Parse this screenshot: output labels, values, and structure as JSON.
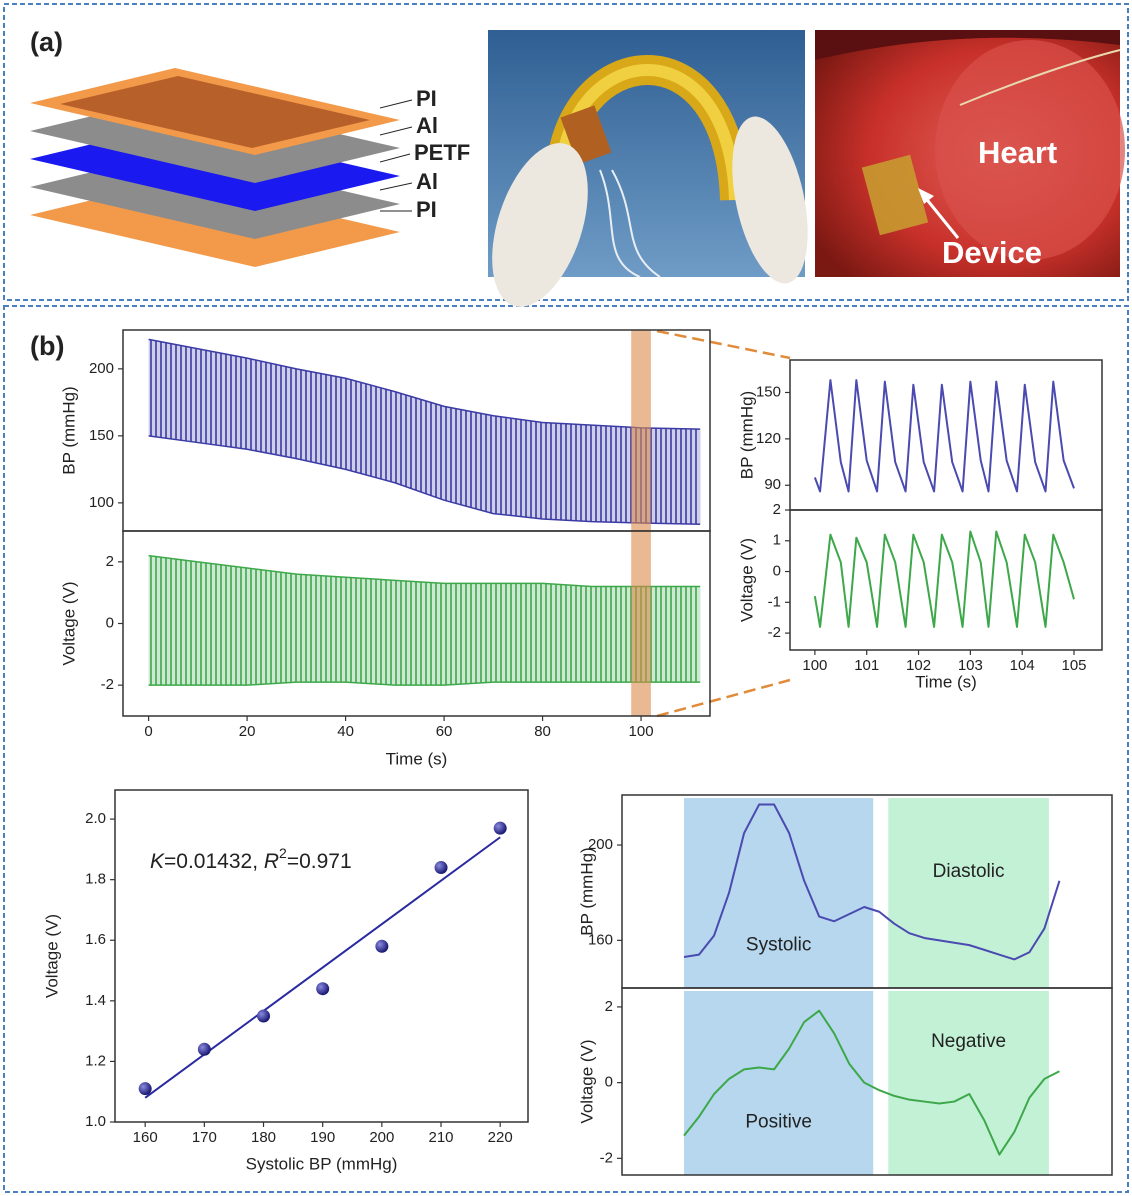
{
  "panel_a": {
    "label": "(a)",
    "layers": [
      "PI",
      "Al",
      "PETF",
      "Al",
      "PI"
    ],
    "photo_labels": [
      "Heart",
      "Device"
    ]
  },
  "panel_b": {
    "label": "(b)"
  },
  "chart_data": [
    {
      "type": "band",
      "x": [
        0,
        10,
        20,
        30,
        40,
        50,
        60,
        70,
        80,
        90,
        100,
        112
      ],
      "series": [
        {
          "color": "#3b3ba6",
          "values": [
            222,
            215,
            208,
            200,
            193,
            183,
            172,
            165,
            160,
            158,
            156,
            155
          ]
        },
        {
          "color": "#3b3ba6",
          "values": [
            150,
            145,
            140,
            133,
            125,
            115,
            102,
            92,
            88,
            86,
            85,
            84
          ]
        }
      ],
      "xlim": [
        -5.2,
        114
      ],
      "ylim": [
        79,
        229
      ],
      "yticks": [
        100,
        150,
        200
      ],
      "ylabel": "BP (mmHg)",
      "highlight": [
        98,
        102
      ]
    },
    {
      "type": "band",
      "x": [
        0,
        10,
        20,
        30,
        40,
        50,
        60,
        70,
        80,
        90,
        100,
        112
      ],
      "series": [
        {
          "color": "#3da84a",
          "values": [
            2.2,
            2.0,
            1.8,
            1.6,
            1.5,
            1.4,
            1.3,
            1.3,
            1.3,
            1.2,
            1.2,
            1.2
          ]
        },
        {
          "color": "#3da84a",
          "values": [
            -2.0,
            -2.0,
            -2.0,
            -1.9,
            -1.9,
            -2.0,
            -2.0,
            -1.9,
            -1.9,
            -1.9,
            -1.9,
            -1.9
          ]
        }
      ],
      "xlim": [
        -5.2,
        114
      ],
      "ylim": [
        -3,
        3
      ],
      "yticks": [
        -2,
        0,
        2
      ],
      "xticks": [
        0,
        20,
        40,
        60,
        80,
        100
      ],
      "xlabel": "Time (s)",
      "ylabel": "Voltage (V)",
      "highlight": [
        98,
        102
      ]
    },
    {
      "type": "line",
      "x": [
        100,
        100.1,
        100.3,
        100.5,
        100.65,
        100.8,
        101,
        101.2,
        101.35,
        101.55,
        101.75,
        101.9,
        102.1,
        102.3,
        102.45,
        102.65,
        102.85,
        103,
        103.2,
        103.35,
        103.5,
        103.7,
        103.9,
        104.05,
        104.25,
        104.45,
        104.6,
        104.8,
        105
      ],
      "series": [
        {
          "color": "#4a4ab0",
          "values": [
            95,
            86,
            158,
            105,
            86,
            158,
            106,
            86,
            157,
            105,
            86,
            155,
            105,
            86,
            155,
            105,
            86,
            157,
            106,
            86,
            157,
            106,
            86,
            155,
            105,
            86,
            157,
            106,
            88
          ]
        }
      ],
      "xlim": [
        99.52,
        105.54
      ],
      "ylim": [
        74,
        171
      ],
      "yticks": [
        90,
        120,
        150
      ],
      "ylabel": "BP (mmHg)"
    },
    {
      "type": "line",
      "x": [
        100,
        100.1,
        100.3,
        100.5,
        100.65,
        100.8,
        101,
        101.2,
        101.35,
        101.55,
        101.75,
        101.9,
        102.1,
        102.3,
        102.45,
        102.65,
        102.85,
        103,
        103.2,
        103.35,
        103.5,
        103.7,
        103.9,
        104.05,
        104.25,
        104.45,
        104.6,
        104.8,
        105
      ],
      "series": [
        {
          "color": "#3da84a",
          "values": [
            -0.8,
            -1.8,
            1.2,
            0.3,
            -1.8,
            1.1,
            0.3,
            -1.8,
            1.2,
            0.3,
            -1.8,
            1.2,
            0.3,
            -1.8,
            1.2,
            0.3,
            -1.8,
            1.3,
            0.3,
            -1.8,
            1.3,
            0.3,
            -1.8,
            1.2,
            0.3,
            -1.8,
            1.2,
            0.3,
            -0.9
          ]
        }
      ],
      "xlim": [
        99.52,
        105.54
      ],
      "ylim": [
        -2.55,
        2
      ],
      "yticks": [
        -2,
        -1,
        0,
        1,
        2
      ],
      "xticks": [
        100,
        101,
        102,
        103,
        104,
        105
      ],
      "xlabel": "Time (s)",
      "ylabel": "Voltage (V)"
    },
    {
      "type": "scatter",
      "x": [
        160,
        170,
        180,
        190,
        200,
        210,
        220
      ],
      "series": [
        {
          "color": "#1a1a80",
          "values": [
            1.11,
            1.24,
            1.35,
            1.44,
            1.58,
            1.84,
            1.97
          ]
        }
      ],
      "fit": {
        "x": [
          160,
          220
        ],
        "y": [
          1.08,
          1.94
        ],
        "color": "#2a2aa0"
      },
      "annotation": [
        "K",
        "=0.01432, ",
        "R",
        "2",
        "=0.971"
      ],
      "xlim": [
        154.9,
        224.7
      ],
      "ylim": [
        1,
        2.096
      ],
      "xticks": [
        160,
        170,
        180,
        190,
        200,
        210,
        220
      ],
      "yticks": [
        {
          "value": 1,
          "label": "1.0"
        },
        1.2,
        1.4,
        1.6,
        1.8,
        {
          "value": 2,
          "label": "2.0"
        }
      ],
      "xlabel": "Systolic BP (mmHg)",
      "ylabel": "Voltage (V)"
    },
    {
      "type": "line",
      "series": [
        {
          "color": "#4a4ab0",
          "values": [
            153,
            154,
            162,
            180,
            205,
            217,
            217,
            205,
            185,
            170,
            168,
            171,
            174,
            172,
            167,
            163,
            161,
            160,
            159,
            158,
            156,
            154,
            152,
            155,
            165,
            185
          ]
        }
      ],
      "regions": [
        {
          "label": "Systolic",
          "start": 0,
          "end": 12.6,
          "color": "#a9d0ea"
        },
        {
          "label": "Diastolic",
          "start": 13.6,
          "end": 24.3,
          "color": "#b8efcf"
        }
      ],
      "xlim": [
        -4.13,
        28.5
      ],
      "ylim": [
        140,
        221
      ],
      "yticks": [
        160,
        200
      ],
      "ylabel": "BP (mmHg)"
    },
    {
      "type": "line",
      "series": [
        {
          "color": "#3da84a",
          "values": [
            -1.4,
            -0.9,
            -0.3,
            0.1,
            0.35,
            0.4,
            0.35,
            0.9,
            1.6,
            1.9,
            1.3,
            0.5,
            0,
            -0.2,
            -0.35,
            -0.45,
            -0.5,
            -0.55,
            -0.5,
            -0.3,
            -1.0,
            -1.9,
            -1.3,
            -0.4,
            0.1,
            0.3
          ]
        }
      ],
      "regions": [
        {
          "label": "Positive",
          "start": 0,
          "end": 12.6,
          "color": "#a9d0ea"
        },
        {
          "label": "Negative",
          "start": 13.6,
          "end": 24.3,
          "color": "#b8efcf"
        }
      ],
      "xlim": [
        -4.13,
        28.5
      ],
      "ylim": [
        -2.44,
        2.5
      ],
      "yticks": [
        -2,
        0,
        2
      ],
      "ylabel": "Voltage (V)"
    }
  ]
}
